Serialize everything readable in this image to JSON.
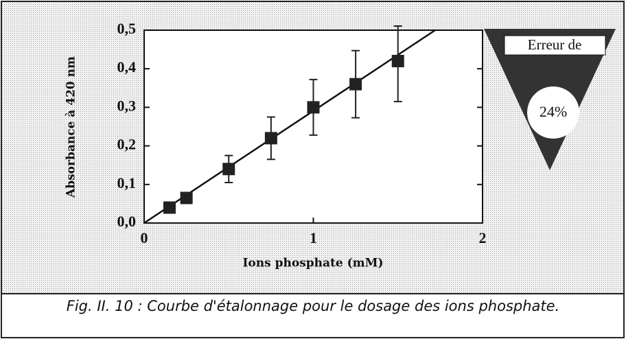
{
  "chart_data": {
    "type": "scatter",
    "caption": "Fig.  II. 10 : Courbe d'étalonnage pour le dosage des ions phosphate.",
    "xlabel": "Ions phosphate (mM)",
    "ylabel": "Absorbance à 420 nm",
    "annotations": [
      "Erreur de",
      "24%"
    ],
    "xlim": [
      0,
      2
    ],
    "ylim": [
      0,
      0.5
    ],
    "xticks": [
      0,
      1,
      2
    ],
    "yticks": [
      {
        "value": 0,
        "label": "0,0"
      },
      {
        "value": 0.1,
        "label": "0,1"
      },
      {
        "value": 0.2,
        "label": "0,2"
      },
      {
        "value": 0.3,
        "label": "0,3"
      },
      {
        "value": 0.4,
        "label": "0,4"
      },
      {
        "value": 0.5,
        "label": "0,5"
      }
    ],
    "series": [
      {
        "x": [
          0.15,
          0.25,
          0.5,
          0.75,
          1.0,
          1.25,
          1.5
        ],
        "values": [
          0.04,
          0.065,
          0.14,
          0.22,
          0.3,
          0.36,
          0.42
        ],
        "errors": [
          0.008,
          0.01,
          0.035,
          0.055,
          0.072,
          0.087,
          0.105
        ],
        "color": "#222222"
      }
    ],
    "fit": {
      "x": [
        0,
        1.72
      ],
      "values": [
        0,
        0.5
      ],
      "color": "#111111"
    }
  }
}
